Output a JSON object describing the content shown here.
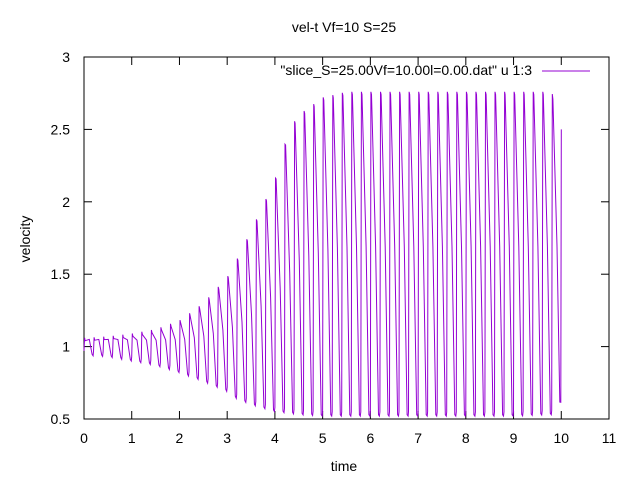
{
  "chart_data": {
    "type": "line",
    "title": "vel-t Vf=10 S=25",
    "xlabel": "time",
    "ylabel": "velocity",
    "xlim": [
      0,
      11
    ],
    "ylim": [
      0.5,
      3
    ],
    "xticks": [
      "0",
      "1",
      "2",
      "3",
      "4",
      "5",
      "6",
      "7",
      "8",
      "9",
      "10",
      "11"
    ],
    "yticks": [
      "0.5",
      "1",
      "1.5",
      "2",
      "2.5",
      "3"
    ],
    "grid": false,
    "legend_position": "top-right",
    "series": [
      {
        "name": "\"slice_S=25.00Vf=10.00l=0.00.dat\" u 1:3",
        "color": "#9400d3",
        "period": 0.2,
        "t_start": 0,
        "t_end": 10,
        "envelope": {
          "t": [
            0,
            0.5,
            1,
            1.5,
            2,
            2.5,
            3,
            3.2,
            3.5,
            4,
            4.3,
            4.5,
            5,
            5.5,
            6,
            7,
            8,
            9,
            9.8,
            10
          ],
          "max": [
            1.06,
            1.07,
            1.09,
            1.12,
            1.18,
            1.3,
            1.48,
            1.6,
            1.8,
            2.15,
            2.5,
            2.6,
            2.72,
            2.76,
            2.76,
            2.76,
            2.76,
            2.76,
            2.76,
            2.5
          ],
          "min": [
            0.94,
            0.93,
            0.9,
            0.87,
            0.82,
            0.76,
            0.69,
            0.64,
            0.6,
            0.55,
            0.54,
            0.53,
            0.52,
            0.52,
            0.52,
            0.52,
            0.52,
            0.52,
            0.53,
            0.62
          ]
        }
      }
    ]
  }
}
